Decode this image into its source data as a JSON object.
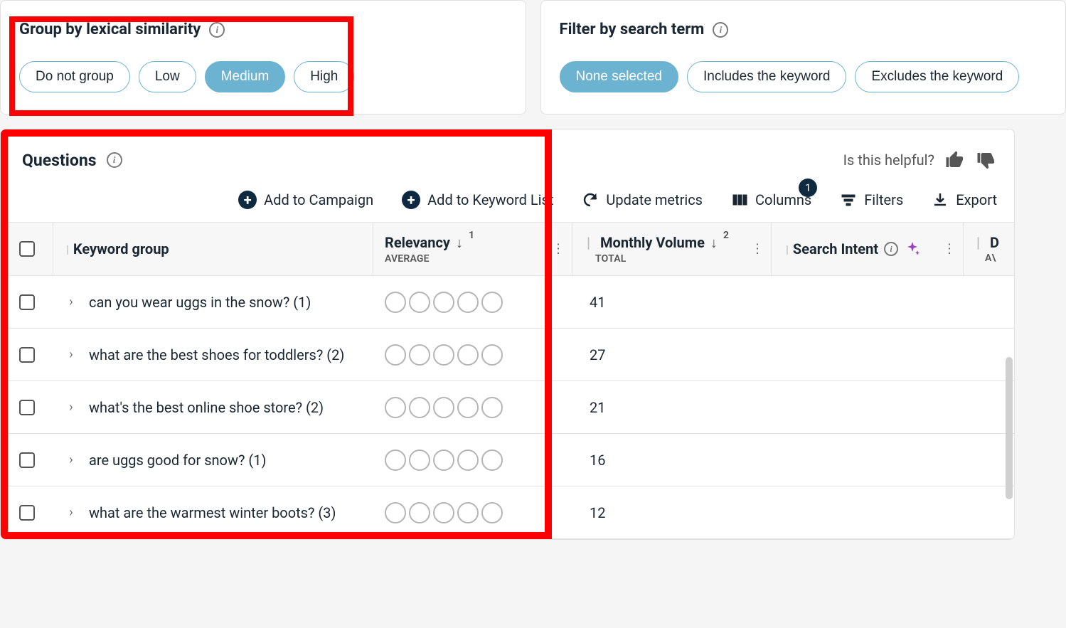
{
  "group_card": {
    "title": "Group by lexical similarity",
    "options": [
      "Do not group",
      "Low",
      "Medium",
      "High"
    ],
    "active_index": 2
  },
  "filter_card": {
    "title": "Filter by search term",
    "options": [
      "None selected",
      "Includes the keyword",
      "Excludes the keyword"
    ],
    "active_index": 0
  },
  "questions": {
    "title": "Questions",
    "helpful_text": "Is this helpful?",
    "toolbar": {
      "add_campaign": "Add to Campaign",
      "add_keyword_list": "Add to Keyword List",
      "update_metrics": "Update metrics",
      "columns": "Columns",
      "columns_badge": "1",
      "filters": "Filters",
      "export": "Export"
    },
    "columns": {
      "keyword_group": "Keyword group",
      "relevancy": "Relevancy",
      "relevancy_sub": "AVERAGE",
      "relevancy_rank": "1",
      "monthly_volume": "Monthly Volume",
      "monthly_volume_sub": "TOTAL",
      "monthly_volume_rank": "2",
      "search_intent": "Search Intent",
      "d": "D",
      "d_sub": "A\\"
    },
    "rows": [
      {
        "text": "can you wear uggs in the snow? (1)",
        "volume": "41"
      },
      {
        "text": "what are the best shoes for toddlers? (2)",
        "volume": "27"
      },
      {
        "text": "what's the best online shoe store? (2)",
        "volume": "21"
      },
      {
        "text": "are uggs good for snow? (1)",
        "volume": "16"
      },
      {
        "text": "what are the warmest winter boots? (3)",
        "volume": "12"
      }
    ]
  },
  "colors": {
    "accent": "#6bb3d0",
    "dark": "#0f2a40",
    "highlight_red": "#ff0000"
  }
}
